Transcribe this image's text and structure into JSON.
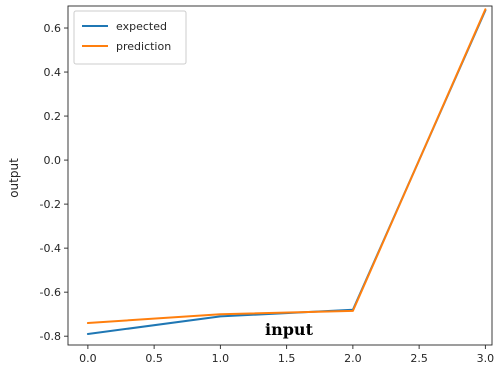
{
  "chart_data": {
    "type": "line",
    "title": "",
    "xlabel": "",
    "ylabel": "output",
    "annotation": "input",
    "x": [
      0.0,
      1.0,
      2.0,
      3.0
    ],
    "xlim": [
      -0.15,
      3.05
    ],
    "ylim": [
      -0.84,
      0.7
    ],
    "xticks": [
      0.0,
      0.5,
      1.0,
      1.5,
      2.0,
      2.5,
      3.0
    ],
    "xtick_labels": [
      "0.0",
      "0.5",
      "1.0",
      "1.5",
      "2.0",
      "2.5",
      "3.0"
    ],
    "yticks": [
      -0.8,
      -0.6,
      -0.4,
      -0.2,
      0.0,
      0.2,
      0.4,
      0.6
    ],
    "ytick_labels": [
      "-0.8",
      "-0.6",
      "-0.4",
      "-0.2",
      "0.0",
      "0.2",
      "0.4",
      "0.6"
    ],
    "grid": false,
    "legend_position": "top-left",
    "series": [
      {
        "name": "expected",
        "color": "#1f77b4",
        "values": [
          -0.79,
          -0.71,
          -0.68,
          0.68
        ]
      },
      {
        "name": "prediction",
        "color": "#ff7f0e",
        "values": [
          -0.74,
          -0.7,
          -0.685,
          0.685
        ]
      }
    ]
  }
}
